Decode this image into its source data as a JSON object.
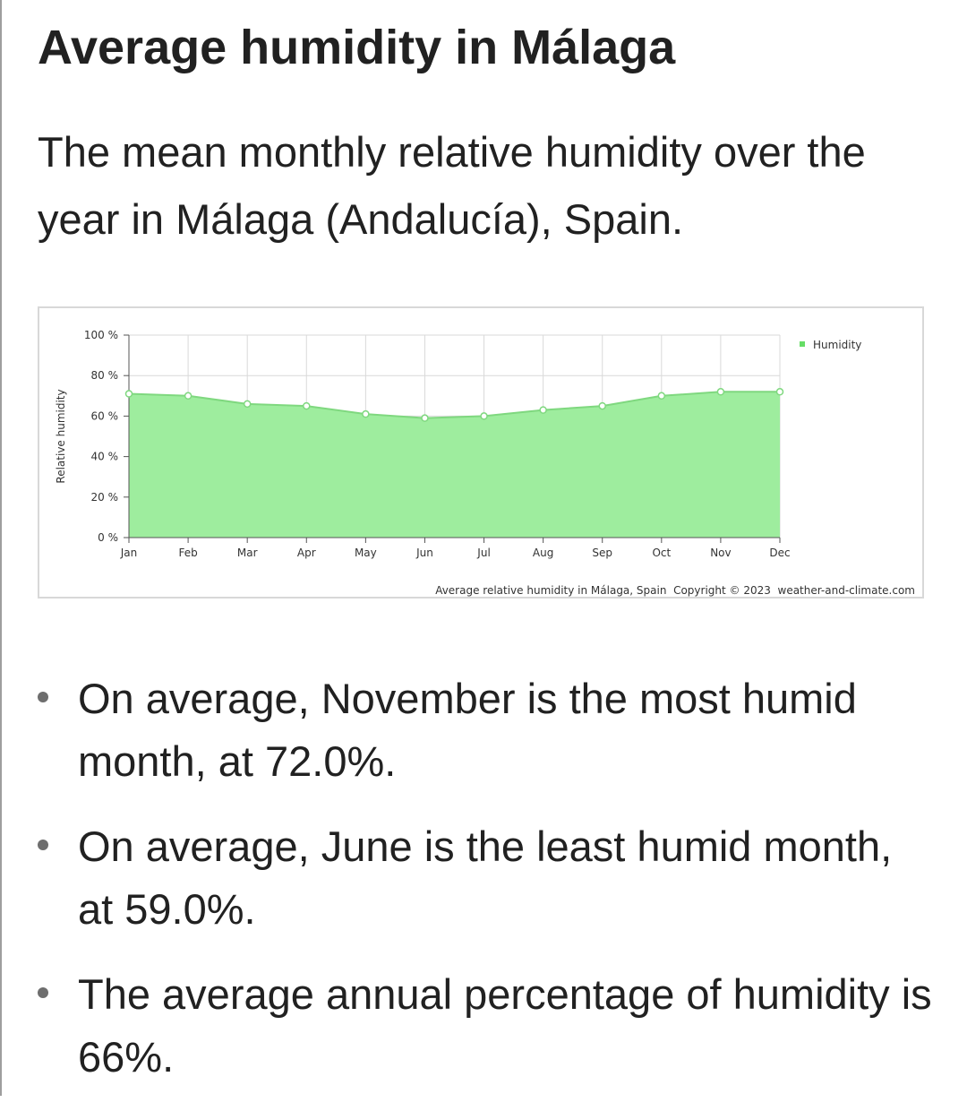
{
  "article": {
    "title": "Average humidity in Málaga",
    "intro": "The mean monthly relative humidity over the year in Málaga (Andalucía), Spain.",
    "facts": [
      "On average, November is the most humid month, at 72.0%.",
      "On average, June is the least humid month, at 59.0%.",
      "The average annual percentage of humidity is 66%."
    ]
  },
  "chart_data": {
    "type": "area",
    "categories": [
      "Jan",
      "Feb",
      "Mar",
      "Apr",
      "May",
      "Jun",
      "Jul",
      "Aug",
      "Sep",
      "Oct",
      "Nov",
      "Dec"
    ],
    "series": [
      {
        "name": "Humidity",
        "values": [
          71,
          70,
          66,
          65,
          61,
          59,
          60,
          63,
          65,
          70,
          72,
          72
        ]
      }
    ],
    "ylabel": "Relative humidity",
    "xlabel": "",
    "ylim": [
      0,
      100
    ],
    "yticks": [
      0,
      20,
      40,
      60,
      80,
      100
    ],
    "ytick_suffix": " %",
    "caption": "Average relative humidity in Málaga, Spain  Copyright © 2023  weather-and-climate.com",
    "grid": true,
    "legend_position": "top-right",
    "colors": {
      "fill": "#9eed9e",
      "line": "#7fd87f",
      "marker_fill": "#ffffff",
      "grid": "#d9d9d9",
      "legend": "#66dd66"
    }
  }
}
